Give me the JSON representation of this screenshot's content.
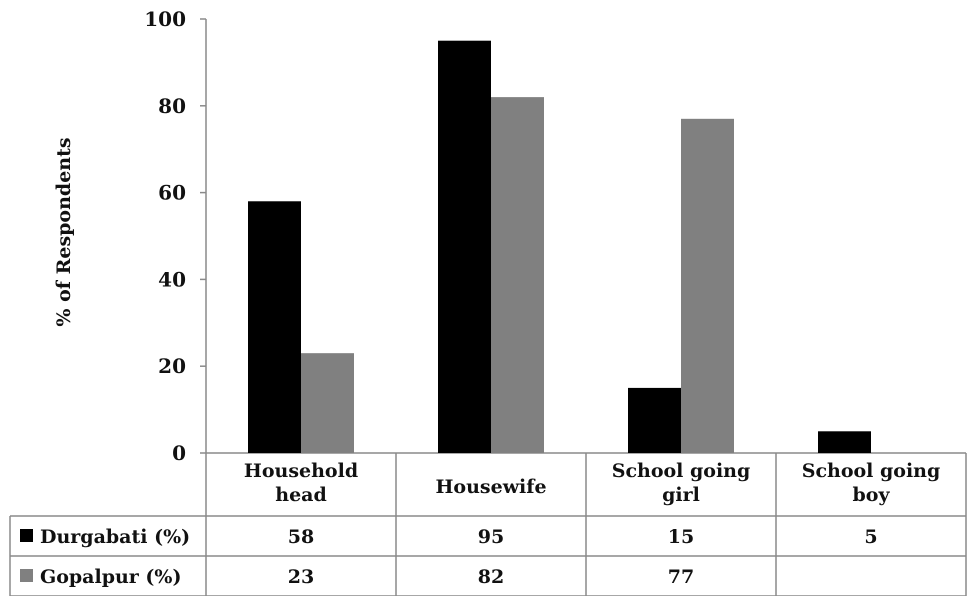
{
  "chart_data": {
    "type": "bar",
    "title": "",
    "xlabel": "",
    "ylabel": "% of Respondents",
    "ylim": [
      0,
      100
    ],
    "yticks": [
      0,
      20,
      40,
      60,
      80,
      100
    ],
    "grid": false,
    "legend": "data-table",
    "categories": [
      [
        "Household",
        "head"
      ],
      [
        "Housewife"
      ],
      [
        "School going",
        "girl"
      ],
      [
        "School going",
        "boy"
      ]
    ],
    "series": [
      {
        "name": "Durgabati (%)",
        "color": "#000000",
        "values": [
          58,
          95,
          15,
          5
        ],
        "labels": [
          "58",
          "95",
          "15",
          "5"
        ]
      },
      {
        "name": "Gopalpur (%)",
        "color": "#808080",
        "values": [
          23,
          82,
          77,
          null
        ],
        "labels": [
          "23",
          "82",
          "77",
          ""
        ]
      }
    ]
  }
}
